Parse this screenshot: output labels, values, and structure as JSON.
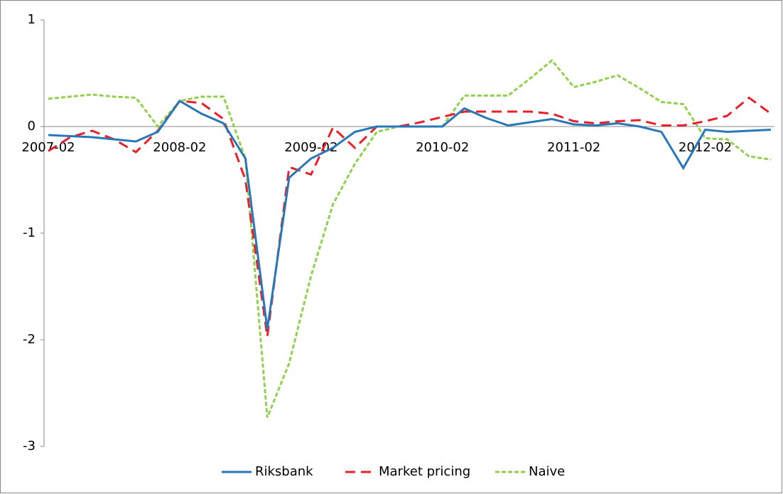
{
  "chart_data": {
    "type": "line",
    "categories": [
      "2007-02",
      null,
      null,
      null,
      null,
      null,
      "2008-02",
      null,
      null,
      null,
      null,
      null,
      "2009-02",
      null,
      null,
      null,
      null,
      null,
      "2010-02",
      null,
      null,
      null,
      null,
      null,
      "2011-02",
      null,
      null,
      null,
      null,
      null,
      "2012-02",
      null,
      null,
      null
    ],
    "series": [
      {
        "name": "Riksbank",
        "color": "#2878b8",
        "dash": "solid",
        "values": [
          -0.08,
          -0.09,
          -0.1,
          -0.12,
          -0.14,
          -0.05,
          0.24,
          0.12,
          0.03,
          -0.3,
          -1.9,
          -0.48,
          -0.3,
          -0.2,
          -0.05,
          0,
          0,
          0,
          0,
          0.17,
          0.08,
          0.01,
          0.04,
          0.07,
          0.02,
          0.01,
          0.03,
          0,
          -0.05,
          -0.39,
          -0.03,
          -0.05,
          -0.04,
          -0.03
        ]
      },
      {
        "name": "Market pricing",
        "color": "#e8202a",
        "dash": "long",
        "values": [
          -0.23,
          -0.1,
          -0.04,
          -0.12,
          -0.24,
          -0.04,
          0.24,
          0.22,
          0.07,
          -0.5,
          -1.97,
          -0.38,
          -0.45,
          -0.01,
          -0.2,
          0,
          0,
          0.04,
          0.09,
          0.14,
          0.14,
          0.14,
          0.14,
          0.12,
          0.05,
          0.03,
          0.05,
          0.06,
          0.01,
          0.01,
          0.05,
          0.1,
          0.27,
          0.12
        ]
      },
      {
        "name": "Naive",
        "color": "#92d050",
        "dash": "short",
        "values": [
          0.26,
          0.28,
          0.3,
          0.28,
          0.27,
          0,
          0.24,
          0.28,
          0.28,
          -0.3,
          -2.73,
          -2.22,
          -1.4,
          -0.73,
          -0.35,
          -0.05,
          0,
          0,
          0,
          0.29,
          0.29,
          0.29,
          0.45,
          0.62,
          0.37,
          0.42,
          0.48,
          0.36,
          0.23,
          0.21,
          -0.11,
          -0.12,
          -0.28,
          -0.31
        ]
      }
    ],
    "ylim": [
      -3,
      1
    ],
    "yticks": [
      -3,
      -2,
      -1,
      0,
      1
    ],
    "legend": "bottom"
  }
}
